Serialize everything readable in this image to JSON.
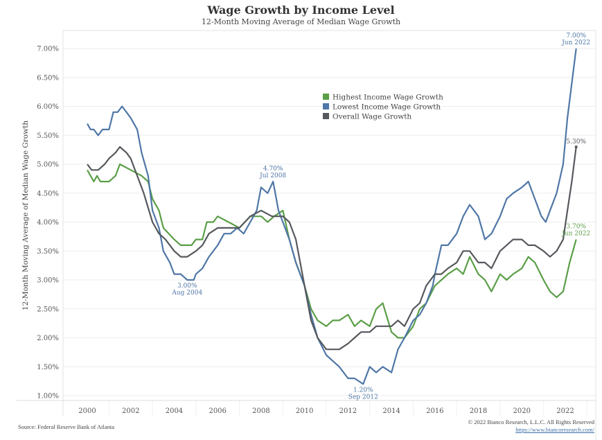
{
  "header": {
    "title": "Wage Growth by Income Level",
    "subtitle": "12-Month Moving Average of Median Wage Growth"
  },
  "footer": {
    "source": "Source: Federal Reserve Bank of Atlanta",
    "copyright": "© 2022 Bianco Research, L.L.C. All Rights Reserved",
    "url": "https://www.biancoresearch.com/"
  },
  "colors": {
    "highest": "#5a9e47",
    "lowest": "#4f76a6",
    "overall": "#55585d",
    "grid": "#eeeeee"
  },
  "chart_data": {
    "type": "line",
    "title": "Wage Growth by Income Level",
    "subtitle": "12-Month Moving Average of Median Wage Growth",
    "xlabel": "",
    "ylabel": "12-Month Moving Average of Median Wage Growth",
    "xlim": [
      1998.9,
      2023.45
    ],
    "ylim": [
      0.92,
      7.2
    ],
    "x_ticks": [
      2000,
      2002,
      2004,
      2006,
      2008,
      2010,
      2012,
      2014,
      2016,
      2018,
      2020,
      2022
    ],
    "x_tick_labels": [
      "2000",
      "2002",
      "2004",
      "2006",
      "2008",
      "2010",
      "2012",
      "2014",
      "2016",
      "2018",
      "2020",
      "2022"
    ],
    "y_ticks": [
      1.0,
      1.5,
      2.0,
      2.5,
      3.0,
      3.5,
      4.0,
      4.5,
      5.0,
      5.5,
      6.0,
      6.5,
      7.0
    ],
    "y_tick_labels": [
      "1.00%",
      "1.50%",
      "2.00%",
      "2.50%",
      "3.00%",
      "3.50%",
      "4.00%",
      "4.50%",
      "5.00%",
      "5.50%",
      "6.00%",
      "6.50%",
      "7.00%"
    ],
    "grid": "horizontal",
    "legend_position": "center-top",
    "series": [
      {
        "name": "Highest Income Wage Growth",
        "key": "highest",
        "x": [
          2000,
          2000.15,
          2000.3,
          2000.45,
          2000.6,
          2000.8,
          2001,
          2001.3,
          2001.5,
          2002,
          2002.5,
          2002.8,
          2003,
          2003.3,
          2003.5,
          2004,
          2004.3,
          2004.5,
          2004.8,
          2005,
          2005.3,
          2005.5,
          2005.8,
          2006,
          2006.5,
          2007,
          2007.5,
          2008,
          2008.3,
          2008.6,
          2009,
          2009.3,
          2009.6,
          2010,
          2010.3,
          2010.6,
          2011,
          2011.3,
          2011.6,
          2012,
          2012.3,
          2012.6,
          2013,
          2013.3,
          2013.6,
          2014,
          2014.3,
          2014.6,
          2015,
          2015.3,
          2015.6,
          2016,
          2016.3,
          2016.6,
          2017,
          2017.3,
          2017.6,
          2018,
          2018.3,
          2018.6,
          2019,
          2019.3,
          2019.6,
          2020,
          2020.3,
          2020.6,
          2021,
          2021.3,
          2021.6,
          2021.9,
          2022.2,
          2022.5
        ],
        "values": [
          4.9,
          4.8,
          4.7,
          4.8,
          4.7,
          4.7,
          4.7,
          4.8,
          5.0,
          4.9,
          4.8,
          4.7,
          4.4,
          4.2,
          3.9,
          3.7,
          3.6,
          3.6,
          3.6,
          3.7,
          3.7,
          4.0,
          4.0,
          4.1,
          4.0,
          3.9,
          4.1,
          4.1,
          4.0,
          4.1,
          4.2,
          3.7,
          3.3,
          2.9,
          2.5,
          2.3,
          2.2,
          2.3,
          2.3,
          2.4,
          2.2,
          2.3,
          2.2,
          2.5,
          2.6,
          2.1,
          2.0,
          2.0,
          2.2,
          2.5,
          2.6,
          2.9,
          3.0,
          3.1,
          3.2,
          3.1,
          3.4,
          3.1,
          3.0,
          2.8,
          3.1,
          3.0,
          3.1,
          3.2,
          3.4,
          3.3,
          3.0,
          2.8,
          2.7,
          2.8,
          3.3,
          3.7
        ]
      },
      {
        "name": "Lowest Income Wage Growth",
        "key": "lowest",
        "x": [
          2000,
          2000.15,
          2000.3,
          2000.5,
          2000.7,
          2001,
          2001.2,
          2001.4,
          2001.6,
          2001.8,
          2002,
          2002.3,
          2002.5,
          2002.8,
          2003,
          2003.3,
          2003.5,
          2003.8,
          2004,
          2004.3,
          2004.6,
          2004.9,
          2005,
          2005.3,
          2005.6,
          2006,
          2006.3,
          2006.6,
          2006.9,
          2007.2,
          2007.5,
          2007.8,
          2008,
          2008.3,
          2008.55,
          2008.8,
          2009,
          2009.3,
          2009.6,
          2010,
          2010.3,
          2010.6,
          2011,
          2011.3,
          2011.6,
          2012,
          2012.3,
          2012.7,
          2013,
          2013.3,
          2013.6,
          2014,
          2014.3,
          2014.6,
          2015,
          2015.3,
          2015.6,
          2015.9,
          2016,
          2016.3,
          2016.6,
          2017,
          2017.3,
          2017.6,
          2018,
          2018.3,
          2018.6,
          2019,
          2019.3,
          2019.6,
          2020,
          2020.3,
          2020.6,
          2020.9,
          2021.1,
          2021.3,
          2021.6,
          2021.9,
          2022.1,
          2022.3,
          2022.5
        ],
        "values": [
          5.7,
          5.6,
          5.6,
          5.5,
          5.6,
          5.6,
          5.9,
          5.9,
          6.0,
          5.9,
          5.8,
          5.6,
          5.2,
          4.8,
          4.2,
          3.9,
          3.5,
          3.3,
          3.1,
          3.1,
          3.0,
          3.0,
          3.1,
          3.2,
          3.4,
          3.6,
          3.8,
          3.8,
          3.9,
          3.8,
          4.0,
          4.2,
          4.6,
          4.5,
          4.7,
          4.2,
          4.0,
          3.7,
          3.3,
          2.9,
          2.4,
          2.0,
          1.7,
          1.6,
          1.5,
          1.3,
          1.3,
          1.2,
          1.5,
          1.4,
          1.5,
          1.4,
          1.8,
          2.0,
          2.3,
          2.4,
          2.6,
          2.9,
          3.1,
          3.6,
          3.6,
          3.8,
          4.1,
          4.3,
          4.1,
          3.7,
          3.8,
          4.1,
          4.4,
          4.5,
          4.6,
          4.7,
          4.4,
          4.1,
          4.0,
          4.2,
          4.5,
          5.0,
          5.8,
          6.4,
          7.0
        ]
      },
      {
        "name": "Overall Wage Growth",
        "key": "overall",
        "x": [
          2000,
          2000.2,
          2000.5,
          2000.8,
          2001,
          2001.3,
          2001.5,
          2001.8,
          2002,
          2002.3,
          2002.6,
          2003,
          2003.3,
          2003.6,
          2004,
          2004.3,
          2004.6,
          2005,
          2005.3,
          2005.6,
          2006,
          2006.5,
          2007,
          2007.5,
          2008,
          2008.5,
          2009,
          2009.3,
          2009.6,
          2010,
          2010.3,
          2010.6,
          2011,
          2011.3,
          2011.6,
          2012,
          2012.3,
          2012.6,
          2013,
          2013.3,
          2013.6,
          2014,
          2014.3,
          2014.6,
          2015,
          2015.3,
          2015.6,
          2016,
          2016.3,
          2016.6,
          2017,
          2017.3,
          2017.6,
          2018,
          2018.3,
          2018.6,
          2019,
          2019.3,
          2019.6,
          2020,
          2020.3,
          2020.6,
          2021,
          2021.3,
          2021.6,
          2021.9,
          2022.1,
          2022.3,
          2022.5
        ],
        "values": [
          5.0,
          4.9,
          4.9,
          5.0,
          5.1,
          5.2,
          5.3,
          5.2,
          5.1,
          4.8,
          4.5,
          4.0,
          3.8,
          3.7,
          3.5,
          3.4,
          3.4,
          3.5,
          3.6,
          3.8,
          3.9,
          3.9,
          3.9,
          4.1,
          4.2,
          4.1,
          4.1,
          4.0,
          3.7,
          2.9,
          2.3,
          2.0,
          1.8,
          1.8,
          1.8,
          1.9,
          2.0,
          2.1,
          2.1,
          2.2,
          2.2,
          2.2,
          2.3,
          2.2,
          2.5,
          2.6,
          2.9,
          3.1,
          3.1,
          3.2,
          3.3,
          3.5,
          3.5,
          3.3,
          3.3,
          3.2,
          3.5,
          3.6,
          3.7,
          3.7,
          3.6,
          3.6,
          3.5,
          3.4,
          3.5,
          3.7,
          4.2,
          4.7,
          5.3
        ]
      }
    ],
    "annotations": [
      {
        "series": "lowest",
        "x": 2004.6,
        "y": 3.0,
        "value": "3.00%",
        "date": "Aug 2004",
        "position": "below"
      },
      {
        "series": "lowest",
        "x": 2008.55,
        "y": 4.7,
        "value": "4.70%",
        "date": "Jul 2008",
        "position": "above"
      },
      {
        "series": "lowest",
        "x": 2012.7,
        "y": 1.2,
        "value": "1.20%",
        "date": "Sep 2012",
        "position": "below"
      },
      {
        "series": "lowest",
        "x": 2022.5,
        "y": 7.0,
        "value": "7.00%",
        "date": "Jun 2022",
        "position": "above"
      },
      {
        "series": "overall",
        "x": 2022.5,
        "y": 5.3,
        "value": "5.30%",
        "date": "",
        "position": "above"
      },
      {
        "series": "highest",
        "x": 2022.5,
        "y": 3.7,
        "value": "3.70%",
        "date": "Jun 2022",
        "position": "above"
      }
    ]
  }
}
